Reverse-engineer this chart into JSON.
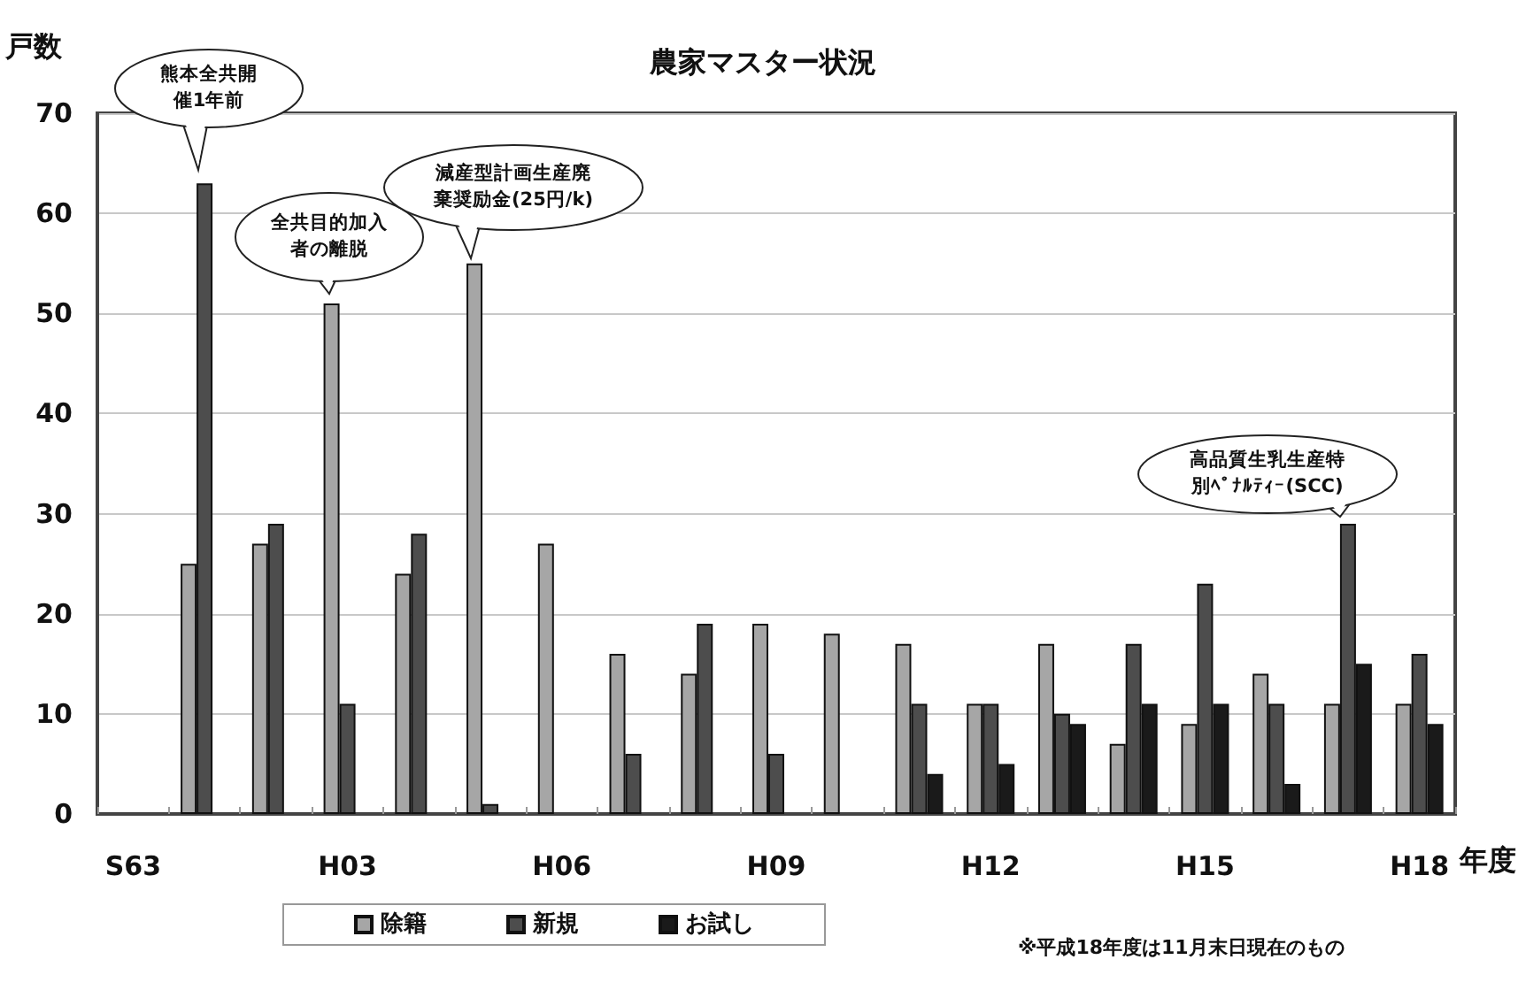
{
  "chart_data": {
    "type": "bar",
    "title": "農家マスター状況",
    "xlabel": "年度",
    "ylabel": "戸数",
    "categories": [
      "S63",
      null,
      null,
      "H03",
      null,
      null,
      "H06",
      null,
      null,
      "H09",
      null,
      null,
      "H12",
      null,
      null,
      "H15",
      null,
      null,
      "H18"
    ],
    "series": [
      {
        "name": "除籍",
        "color": "#a6a6a6",
        "values": [
          null,
          25,
          27,
          51,
          24,
          55,
          27,
          16,
          14,
          19,
          18,
          17,
          11,
          17,
          7,
          9,
          14,
          11,
          11
        ]
      },
      {
        "name": "新規",
        "color": "#4d4d4d",
        "values": [
          null,
          63,
          29,
          11,
          28,
          1,
          null,
          6,
          19,
          6,
          null,
          11,
          11,
          10,
          17,
          23,
          11,
          29,
          16
        ]
      },
      {
        "name": "お試し",
        "color": "#1a1a1a",
        "values": [
          null,
          null,
          null,
          null,
          null,
          null,
          null,
          null,
          null,
          null,
          null,
          4,
          5,
          9,
          11,
          11,
          3,
          15,
          9
        ]
      }
    ],
    "ylim": [
      0,
      70
    ],
    "yticks": [
      0,
      10,
      20,
      30,
      40,
      50,
      60,
      70
    ],
    "grid": "y",
    "legend": "bottom left",
    "annotations": [
      "熊本全共開催1年前",
      "全共目的加入者の離脱",
      "減産型計画生産廃棄奨励金(25円/k)",
      "高品質生乳生産特別ﾍﾟﾅﾙﾃｨｰ(SCC)",
      "※平成18年度は11月末日現在のもの"
    ]
  }
}
